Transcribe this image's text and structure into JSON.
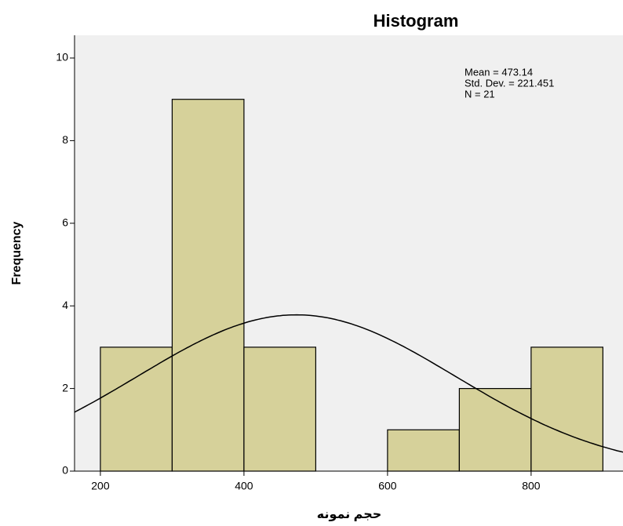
{
  "chart_data": {
    "type": "histogram",
    "title": "Histogram",
    "x_label": "حجم نمونه",
    "y_label": "Frequency",
    "bins": [
      200,
      300,
      400,
      500,
      600,
      700,
      800,
      900
    ],
    "values": [
      3,
      9,
      3,
      0,
      1,
      2,
      3
    ],
    "color": "#d6d19a",
    "xlim": [
      164,
      928
    ],
    "xticks": [
      200,
      400,
      600,
      800
    ],
    "ylim": [
      0,
      10
    ],
    "yticks": [
      0,
      2,
      4,
      6,
      8,
      10
    ],
    "stats": [
      {
        "value": 473.14,
        "label": "Mean = 473.14"
      },
      {
        "value": 221.451,
        "label": "Std. Dev. = 221.451"
      },
      {
        "value": 21,
        "label": "N = 21"
      }
    ],
    "curve_color": "#000000"
  }
}
